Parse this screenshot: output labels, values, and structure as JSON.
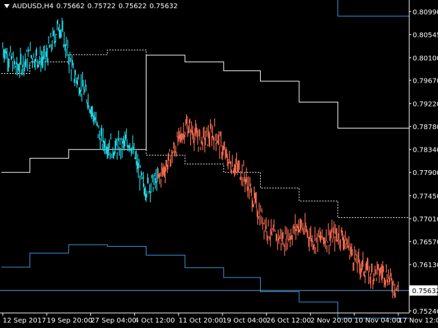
{
  "header": {
    "symbol": "AUDUSD,H4",
    "open": "0.75662",
    "high": "0.75722",
    "low": "0.75622",
    "close": "0.75632"
  },
  "price_axis": {
    "ticks": [
      "0.80990",
      "0.80545",
      "0.80100",
      "0.79670",
      "0.79220",
      "0.78780",
      "0.78340",
      "0.77900",
      "0.77450",
      "0.77010",
      "0.76570",
      "0.76130",
      "0.75632",
      "0.75240"
    ],
    "current_price": "0.75632"
  },
  "time_axis": {
    "labels": [
      "12 Sep 2017",
      "19 Sep 20:00",
      "27 Sep 04:00",
      "4 Oct 12:00",
      "11 Oct 20:00",
      "19 Oct 04:00",
      "26 Oct 12:00",
      "2 Nov 20:00",
      "10 Nov 04:00",
      "17 Nov 12:00"
    ]
  },
  "colors": {
    "background": "#000000",
    "bull_bars": "#1fd8e6",
    "bear_bars": "#f26a4f",
    "channel_line": "#ffffff",
    "band_line": "#3a9ad9",
    "current_price_line": "#6aa8d8"
  },
  "chart_data": {
    "type": "line",
    "title": "AUDUSD,H4",
    "ylim": [
      0.752,
      0.8121
    ],
    "price_series": [
      {
        "x": "12 Sep 2017",
        "y": 0.803
      },
      {
        "x": "14 Sep",
        "y": 0.799
      },
      {
        "x": "16 Sep",
        "y": 0.8015
      },
      {
        "x": "18 Sep",
        "y": 0.8005
      },
      {
        "x": "19 Sep 20:00",
        "y": 0.8075
      },
      {
        "x": "21 Sep",
        "y": 0.798
      },
      {
        "x": "24 Sep",
        "y": 0.7935
      },
      {
        "x": "27 Sep 04:00",
        "y": 0.785
      },
      {
        "x": "30 Sep",
        "y": 0.7835
      },
      {
        "x": "3 Oct",
        "y": 0.785
      },
      {
        "x": "4 Oct 12:00",
        "y": 0.776
      },
      {
        "x": "7 Oct",
        "y": 0.7775
      },
      {
        "x": "9 Oct",
        "y": 0.7825
      },
      {
        "x": "11 Oct 20:00",
        "y": 0.788
      },
      {
        "x": "14 Oct",
        "y": 0.785
      },
      {
        "x": "17 Oct",
        "y": 0.7865
      },
      {
        "x": "19 Oct 04:00",
        "y": 0.781
      },
      {
        "x": "22 Oct",
        "y": 0.779
      },
      {
        "x": "24 Oct",
        "y": 0.772
      },
      {
        "x": "26 Oct 12:00",
        "y": 0.767
      },
      {
        "x": "29 Oct",
        "y": 0.766
      },
      {
        "x": "31 Oct",
        "y": 0.769
      },
      {
        "x": "2 Nov 20:00",
        "y": 0.766
      },
      {
        "x": "6 Nov",
        "y": 0.7665
      },
      {
        "x": "8 Nov",
        "y": 0.767
      },
      {
        "x": "10 Nov 04:00",
        "y": 0.762
      },
      {
        "x": "13 Nov",
        "y": 0.7595
      },
      {
        "x": "15 Nov",
        "y": 0.76
      },
      {
        "x": "17 Nov 12:00",
        "y": 0.7563
      }
    ],
    "color_switch_index": 11,
    "indicator_lines": [
      {
        "style": "solid",
        "color": "#ffffff",
        "steps": [
          [
            0.0,
            0.779
          ],
          [
            0.07,
            0.7817
          ],
          [
            0.165,
            0.7834
          ],
          [
            0.355,
            0.8015
          ],
          [
            0.45,
            0.8002
          ],
          [
            0.545,
            0.7985
          ],
          [
            0.635,
            0.7965
          ],
          [
            0.73,
            0.7925
          ],
          [
            0.825,
            0.7875
          ],
          [
            0.92,
            0.7875
          ]
        ]
      },
      {
        "style": "dashed",
        "color": "#ffffff",
        "steps": [
          [
            0.0,
            0.798
          ],
          [
            0.07,
            0.8002
          ],
          [
            0.165,
            0.8016
          ],
          [
            0.26,
            0.8025
          ],
          [
            0.355,
            0.7823
          ],
          [
            0.45,
            0.7806
          ],
          [
            0.545,
            0.779
          ],
          [
            0.635,
            0.776
          ],
          [
            0.73,
            0.7735
          ],
          [
            0.825,
            0.7703
          ],
          [
            0.92,
            0.7703
          ]
        ]
      },
      {
        "style": "solid",
        "color": "#3a9ad9",
        "steps": [
          [
            0.0,
            0.7608
          ],
          [
            0.07,
            0.7635
          ],
          [
            0.165,
            0.7651
          ],
          [
            0.26,
            0.7648
          ],
          [
            0.355,
            0.7631
          ],
          [
            0.45,
            0.7607
          ],
          [
            0.545,
            0.7588
          ],
          [
            0.635,
            0.7561
          ],
          [
            0.73,
            0.7541
          ],
          [
            0.825,
            0.751
          ],
          [
            0.92,
            0.751
          ]
        ]
      },
      {
        "style": "solid",
        "color": "#3a9ad9",
        "steps": [
          [
            0.73,
            0.8125
          ],
          [
            0.825,
            0.809
          ],
          [
            0.92,
            0.809
          ]
        ]
      }
    ],
    "current_price": 0.75632
  }
}
